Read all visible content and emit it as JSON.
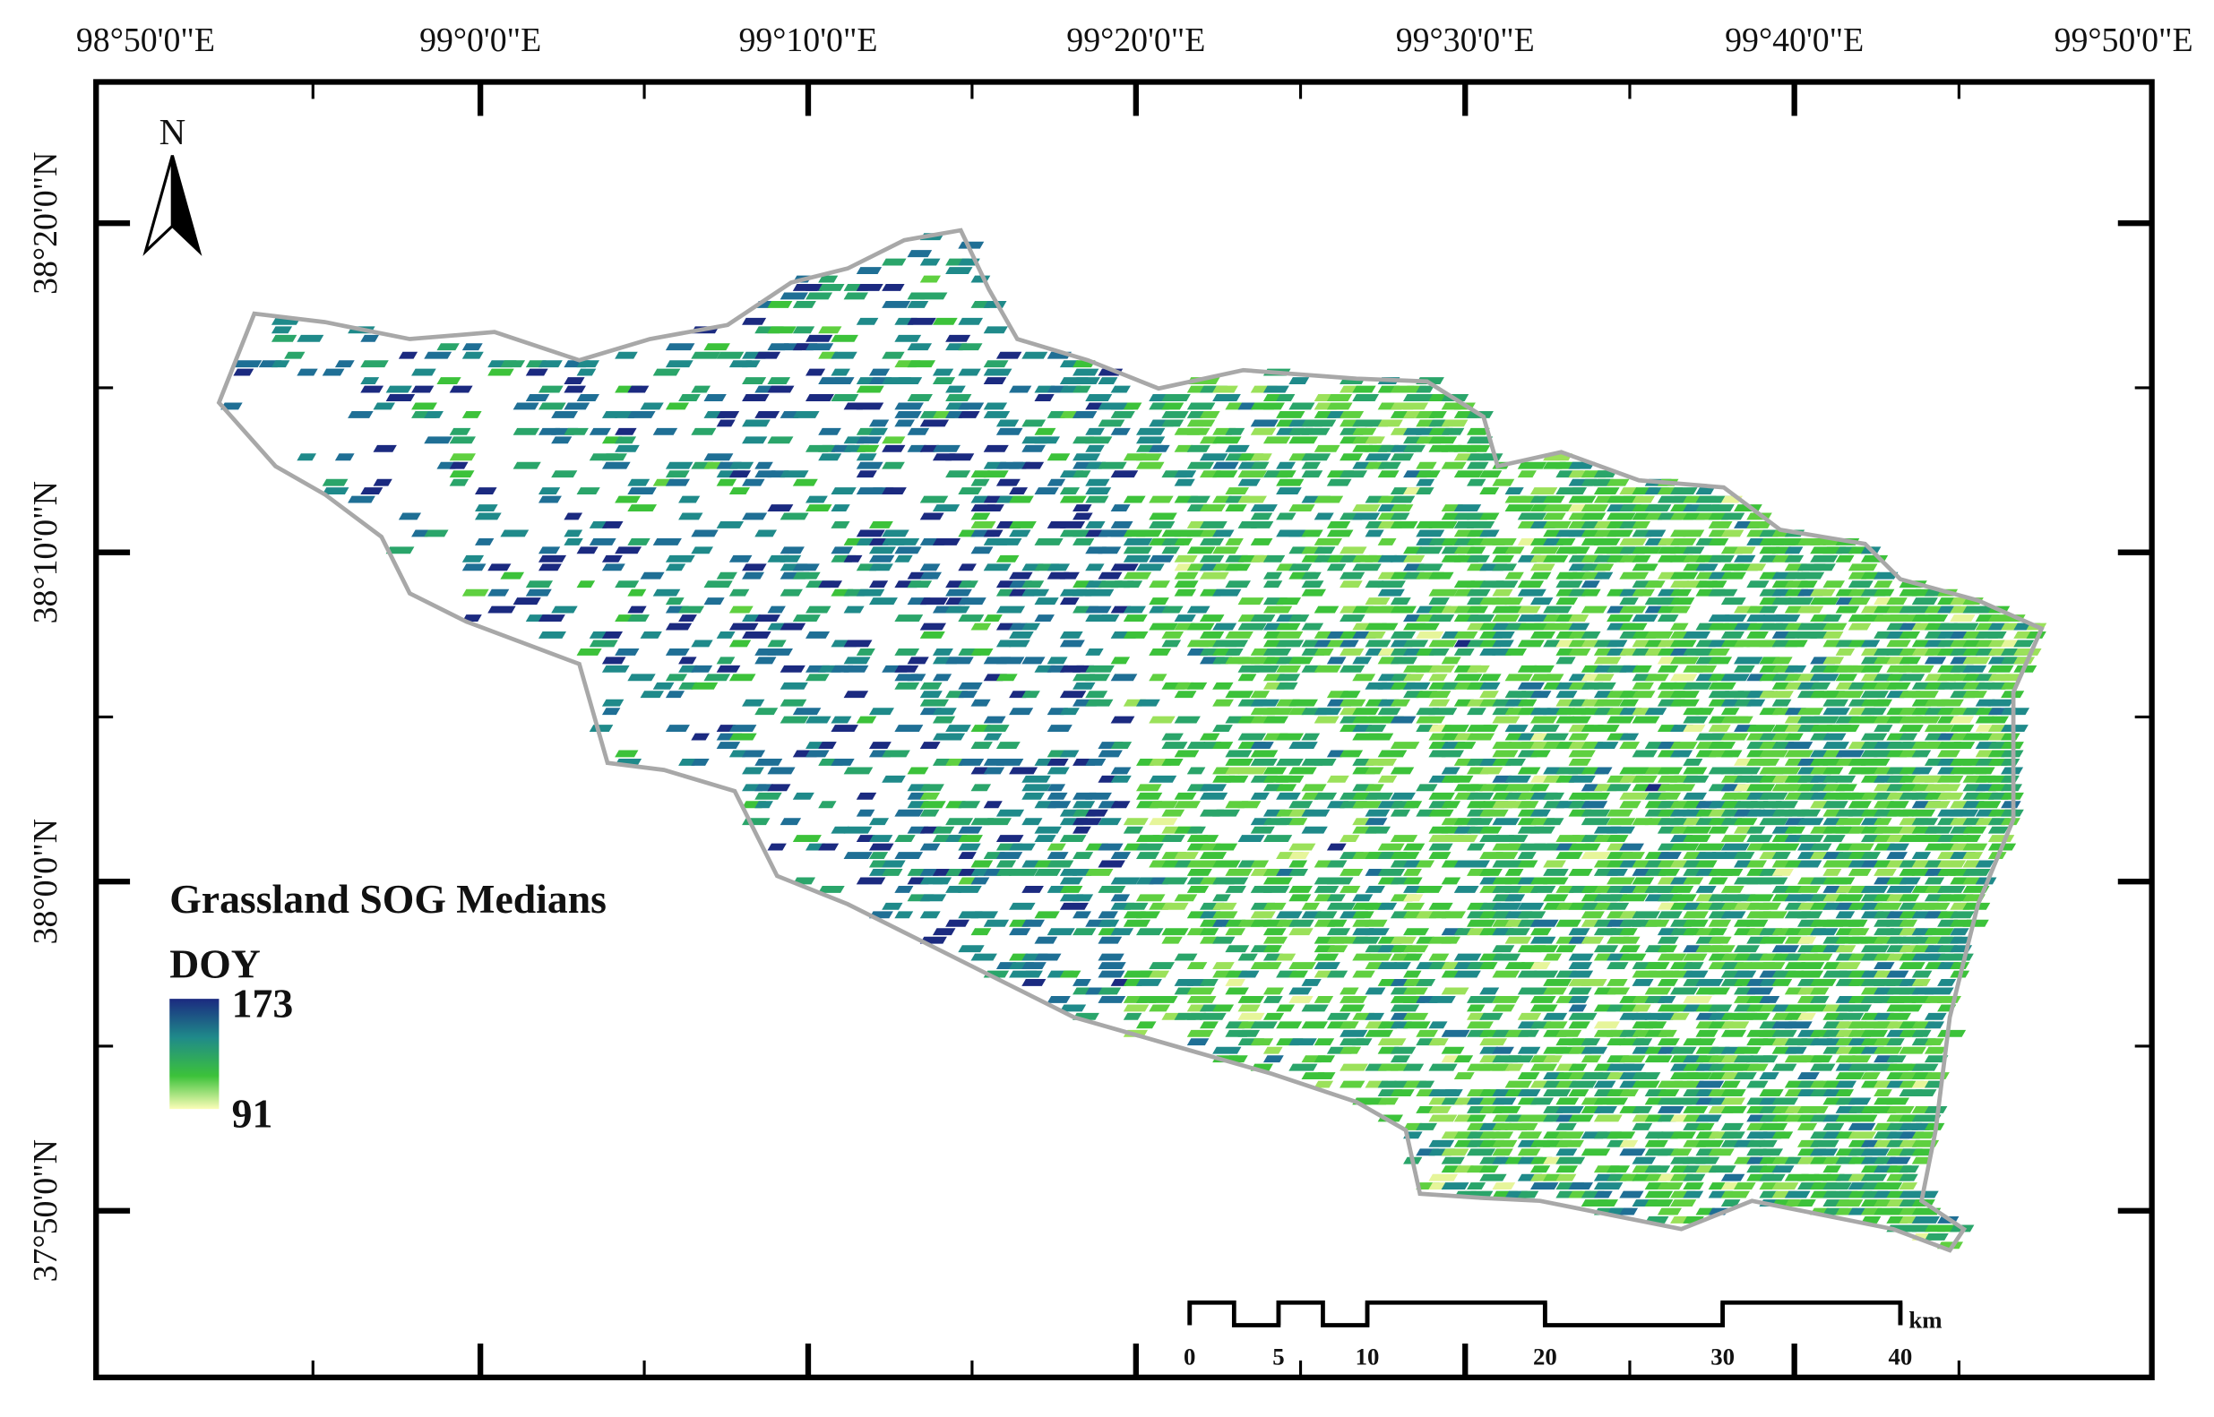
{
  "map": {
    "north_label": "N",
    "longitude_labels": [
      "98°50'0\"E",
      "99°0'0\"E",
      "99°10'0\"E",
      "99°20'0\"E",
      "99°30'0\"E",
      "99°40'0\"E",
      "99°50'0\"E"
    ],
    "latitude_labels": [
      "38°20'0\"N",
      "38°10'0\"N",
      "38°0'0\"N",
      "37°50'0\"N"
    ],
    "legend": {
      "title": "Grassland SOG Medians",
      "unit": "DOY",
      "max": 173,
      "min": 91
    },
    "scale_bar": {
      "ticks": [
        0,
        5,
        10,
        20,
        30,
        40
      ],
      "unit": "km"
    }
  }
}
